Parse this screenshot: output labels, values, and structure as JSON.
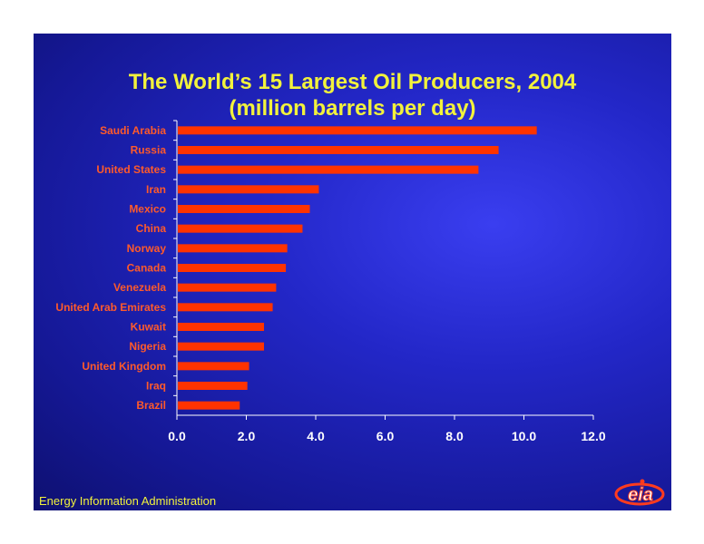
{
  "slide": {
    "footer": "Energy Information Administration",
    "logo_text": "eia"
  },
  "colors": {
    "bar": "#ff3300",
    "label": "#ff5a2a",
    "tick": "#ffffff",
    "title": "#f2f23c",
    "axis": "#ffffff"
  },
  "chart_data": {
    "type": "bar",
    "orientation": "horizontal",
    "title": "The World’s 15 Largest Oil Producers, 2004",
    "subtitle": "(million barrels per day)",
    "categories": [
      "Saudi Arabia",
      "Russia",
      "United States",
      "Iran",
      "Mexico",
      "China",
      "Norway",
      "Canada",
      "Venezuela",
      "United Arab Emirates",
      "Kuwait",
      "Nigeria",
      "United Kingdom",
      "Iraq",
      "Brazil"
    ],
    "values": [
      10.37,
      9.27,
      8.69,
      4.09,
      3.83,
      3.62,
      3.18,
      3.14,
      2.86,
      2.76,
      2.51,
      2.51,
      2.08,
      2.03,
      1.81
    ],
    "xlim": [
      0,
      12
    ],
    "xticks": [
      "0.0",
      "2.0",
      "4.0",
      "6.0",
      "8.0",
      "10.0",
      "12.0"
    ],
    "grid": false,
    "legend": "none"
  }
}
